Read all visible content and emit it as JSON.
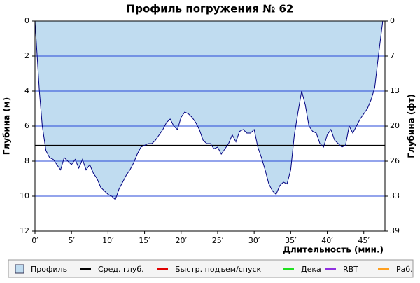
{
  "chart_data": {
    "type": "area",
    "title": "Профиль погружения № 62",
    "x_label": "Длительность (мин.)",
    "y_label": "Глубина (м)",
    "y2_label": "Глубина (фт)",
    "xlim": [
      0,
      47.9
    ],
    "ylim": [
      0,
      12
    ],
    "y2lim": [
      0,
      39.37
    ],
    "xticks": [
      {
        "value": 0,
        "label": "0′"
      },
      {
        "value": 5,
        "label": "5′"
      },
      {
        "value": 10,
        "label": "10′"
      },
      {
        "value": 15,
        "label": "15′"
      },
      {
        "value": 20,
        "label": "20′"
      },
      {
        "value": 25,
        "label": "25′"
      },
      {
        "value": 30,
        "label": "30′"
      },
      {
        "value": 35,
        "label": "35′"
      },
      {
        "value": 40,
        "label": "40′"
      },
      {
        "value": 45,
        "label": "45′"
      }
    ],
    "yticks": [
      0,
      2,
      4,
      6,
      8,
      10,
      12
    ],
    "y2ticks": [
      {
        "value": 0,
        "label": "0"
      },
      {
        "value": 6.56,
        "label": "7"
      },
      {
        "value": 13.12,
        "label": "13"
      },
      {
        "value": 19.69,
        "label": "20"
      },
      {
        "value": 26.25,
        "label": "26"
      },
      {
        "value": 32.81,
        "label": "33"
      },
      {
        "value": 39.37,
        "label": "39"
      }
    ],
    "grid": true,
    "grid_color": "#2848d8",
    "avg_depth": 7.1,
    "x": [
      0,
      0.3,
      0.6,
      1,
      1.5,
      2,
      2.5,
      3,
      3.5,
      4,
      4.5,
      5,
      5.5,
      6,
      6.5,
      7,
      7.5,
      8,
      8.5,
      9,
      9.5,
      10,
      10.5,
      11,
      11.5,
      12,
      12.5,
      13,
      13.5,
      14,
      14.5,
      15,
      15.5,
      16,
      16.5,
      17,
      17.5,
      18,
      18.5,
      19,
      19.5,
      20,
      20.5,
      21,
      21.5,
      22,
      22.5,
      23,
      23.5,
      24,
      24.5,
      25,
      25.5,
      26,
      26.5,
      27,
      27.5,
      28,
      28.5,
      29,
      29.5,
      30,
      30.5,
      31,
      31.5,
      32,
      32.5,
      33,
      33.5,
      34,
      34.5,
      35,
      35.5,
      36,
      36.5,
      37,
      37.5,
      38,
      38.5,
      39,
      39.5,
      40,
      40.5,
      41,
      41.5,
      42,
      42.5,
      43,
      43.5,
      44,
      44.5,
      45,
      45.5,
      46,
      46.5,
      47,
      47.6
    ],
    "series": [
      {
        "name": "Профиль",
        "color": "#c0dcf0",
        "line_color": "#000080",
        "values": [
          0,
          2,
          4,
          6,
          7.4,
          7.8,
          7.9,
          8.2,
          8.5,
          7.8,
          8.0,
          8.2,
          7.9,
          8.4,
          7.9,
          8.5,
          8.2,
          8.7,
          9.0,
          9.5,
          9.7,
          9.9,
          10.0,
          10.2,
          9.6,
          9.2,
          8.8,
          8.5,
          8.1,
          7.6,
          7.2,
          7.1,
          7.0,
          7.0,
          6.8,
          6.5,
          6.2,
          5.8,
          5.6,
          6.0,
          6.2,
          5.5,
          5.2,
          5.3,
          5.5,
          5.8,
          6.2,
          6.8,
          7.0,
          7.0,
          7.3,
          7.2,
          7.6,
          7.3,
          7.0,
          6.5,
          6.9,
          6.3,
          6.2,
          6.4,
          6.4,
          6.2,
          7.2,
          7.8,
          8.5,
          9.3,
          9.7,
          9.9,
          9.4,
          9.2,
          9.3,
          8.5,
          6.5,
          5.2,
          4.0,
          4.8,
          6.0,
          6.3,
          6.4,
          7.0,
          7.2,
          6.5,
          6.2,
          6.8,
          7.0,
          7.2,
          7.1,
          6.0,
          6.4,
          6.0,
          5.6,
          5.3,
          5.0,
          4.5,
          3.8,
          2.0,
          0
        ]
      }
    ],
    "legend": [
      {
        "name": "Профиль",
        "color": "#c0dcf0"
      },
      {
        "name": "Сред. глуб.",
        "color": "#000000"
      },
      {
        "name": "Быстр. подъем/спуск",
        "color": "#e00000"
      },
      {
        "name": "Дека",
        "color": "#20e020"
      },
      {
        "name": "RBT",
        "color": "#9030e0"
      },
      {
        "name": "Раб.",
        "color": "#ffa020"
      }
    ]
  }
}
